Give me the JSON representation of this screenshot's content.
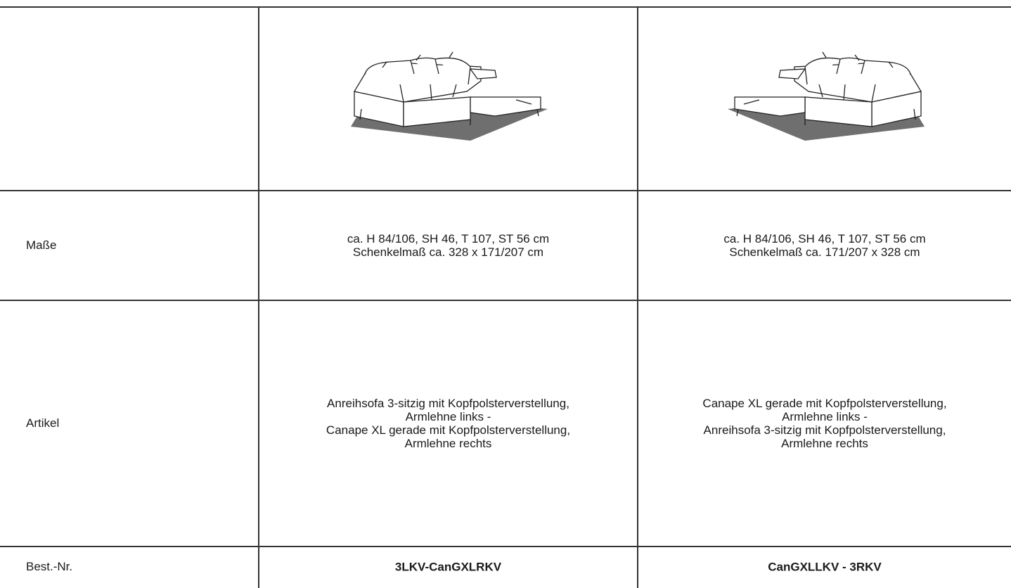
{
  "table": {
    "rows": [
      {
        "label": "Maße",
        "cells": [
          [
            "ca. H 84/106, SH 46, T 107, ST 56 cm",
            "Schenkelmaß ca. 328 x 171/207 cm"
          ],
          [
            "ca. H 84/106, SH 46, T 107, ST 56 cm",
            "Schenkelmaß ca. 171/207 x 328 cm"
          ]
        ]
      },
      {
        "label": "Artikel",
        "cells": [
          [
            "Anreihsofa 3-sitzig mit Kopfpolsterverstellung,",
            "Armlehne links -",
            "Canape XL gerade mit Kopfpolsterverstellung,",
            "Armlehne rechts"
          ],
          [
            "Canape XL gerade mit Kopfpolsterverstellung,",
            "Armlehne links -",
            "Anreihsofa 3-sitzig mit Kopfpolsterverstellung,",
            "Armlehne rechts"
          ]
        ]
      },
      {
        "label": "Best.-Nr.",
        "cells": [
          [
            "3LKV-CanGXLRKV"
          ],
          [
            "CanGXLLKV - 3RKV"
          ]
        ],
        "bold": true
      }
    ]
  }
}
